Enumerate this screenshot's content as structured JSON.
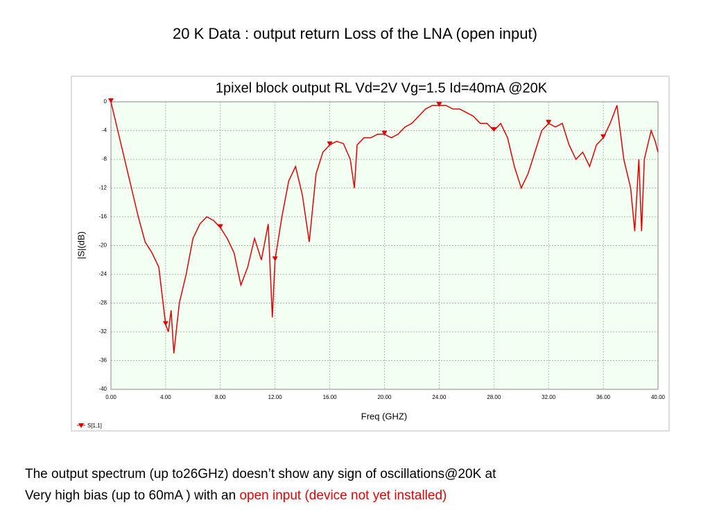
{
  "slide_title": "20 K Data : output return Loss of the LNA (open input)",
  "chart_data": {
    "type": "line",
    "title": "1pixel block output RL Vd=2V Vg=1.5 Id=40mA @20K",
    "xlabel": "Freq (GHZ)",
    "ylabel": "|S|(dB)",
    "x": [
      0,
      0.25,
      0.5,
      1,
      1.5,
      2,
      2.5,
      3,
      3.5,
      4,
      4.2,
      4.4,
      4.6,
      5,
      5.5,
      6,
      6.5,
      7,
      7.5,
      8,
      8.5,
      9,
      9.5,
      10,
      10.5,
      11,
      11.5,
      11.8,
      12,
      12.5,
      13,
      13.5,
      14,
      14.5,
      15,
      15.5,
      16,
      16.5,
      17,
      17.5,
      17.8,
      18,
      18.5,
      19,
      19.5,
      20,
      20.5,
      21,
      21.5,
      22,
      22.5,
      23,
      23.5,
      24,
      24.5,
      25,
      25.5,
      26,
      26.5,
      27,
      27.5,
      28,
      28.5,
      29,
      29.5,
      30,
      30.5,
      31,
      31.5,
      32,
      32.5,
      33,
      33.5,
      34,
      34.5,
      35,
      35.5,
      36,
      36.5,
      37,
      37.5,
      38,
      38.3,
      38.6,
      38.8,
      39,
      39.5,
      39.8,
      40
    ],
    "series": [
      {
        "name": "S[1,1]",
        "color": "#e00000",
        "values": [
          0,
          -2,
          -4,
          -8,
          -12,
          -16,
          -19.5,
          -21,
          -23,
          -31,
          -32,
          -29,
          -35,
          -28,
          -24,
          -19,
          -17,
          -16,
          -16.5,
          -17.5,
          -19,
          -21,
          -25.5,
          -23,
          -19,
          -22,
          -17,
          -30,
          -22,
          -16,
          -11,
          -9,
          -13,
          -19.5,
          -10,
          -7,
          -6,
          -5.5,
          -5.8,
          -8,
          -12,
          -6,
          -5,
          -5,
          -4.5,
          -4.5,
          -5,
          -4.5,
          -3.5,
          -3,
          -2,
          -1,
          -0.5,
          -0.5,
          -0.5,
          -1,
          -1,
          -1.5,
          -2,
          -3,
          -3,
          -4,
          -3,
          -5,
          -9,
          -12,
          -10,
          -7,
          -4,
          -3,
          -3.5,
          -3,
          -6,
          -8,
          -7,
          -9,
          -6,
          -5,
          -3,
          -0.5,
          -8,
          -12,
          -18,
          -8,
          -18,
          -8,
          -4,
          -5.5,
          -7
        ]
      }
    ],
    "xlim": [
      0,
      40
    ],
    "xticks": [
      {
        "value": 0,
        "label": "0.00"
      },
      {
        "value": 4,
        "label": "4.00"
      },
      {
        "value": 8,
        "label": "8.00"
      },
      {
        "value": 12,
        "label": "12.00"
      },
      {
        "value": 16,
        "label": "16.00"
      },
      {
        "value": 20,
        "label": "20.00"
      },
      {
        "value": 24,
        "label": "24.00"
      },
      {
        "value": 28,
        "label": "28.00"
      },
      {
        "value": 32,
        "label": "32.00"
      },
      {
        "value": 36,
        "label": "36.00"
      },
      {
        "value": 40,
        "label": "40.00"
      }
    ],
    "ylim": [
      -40,
      0
    ],
    "yticks": [
      0,
      -4,
      -8,
      -12,
      -16,
      -20,
      -24,
      -28,
      -32,
      -36,
      -40
    ],
    "grid": true,
    "legend": "bottom-left"
  },
  "caption": {
    "line1": "The output spectrum (up to26GHz) doesn’t show any sign of oscillations@20K  at",
    "line2": "Very high bias (up to 60mA ) with an ",
    "highlight": "open input (device not yet installed)"
  }
}
